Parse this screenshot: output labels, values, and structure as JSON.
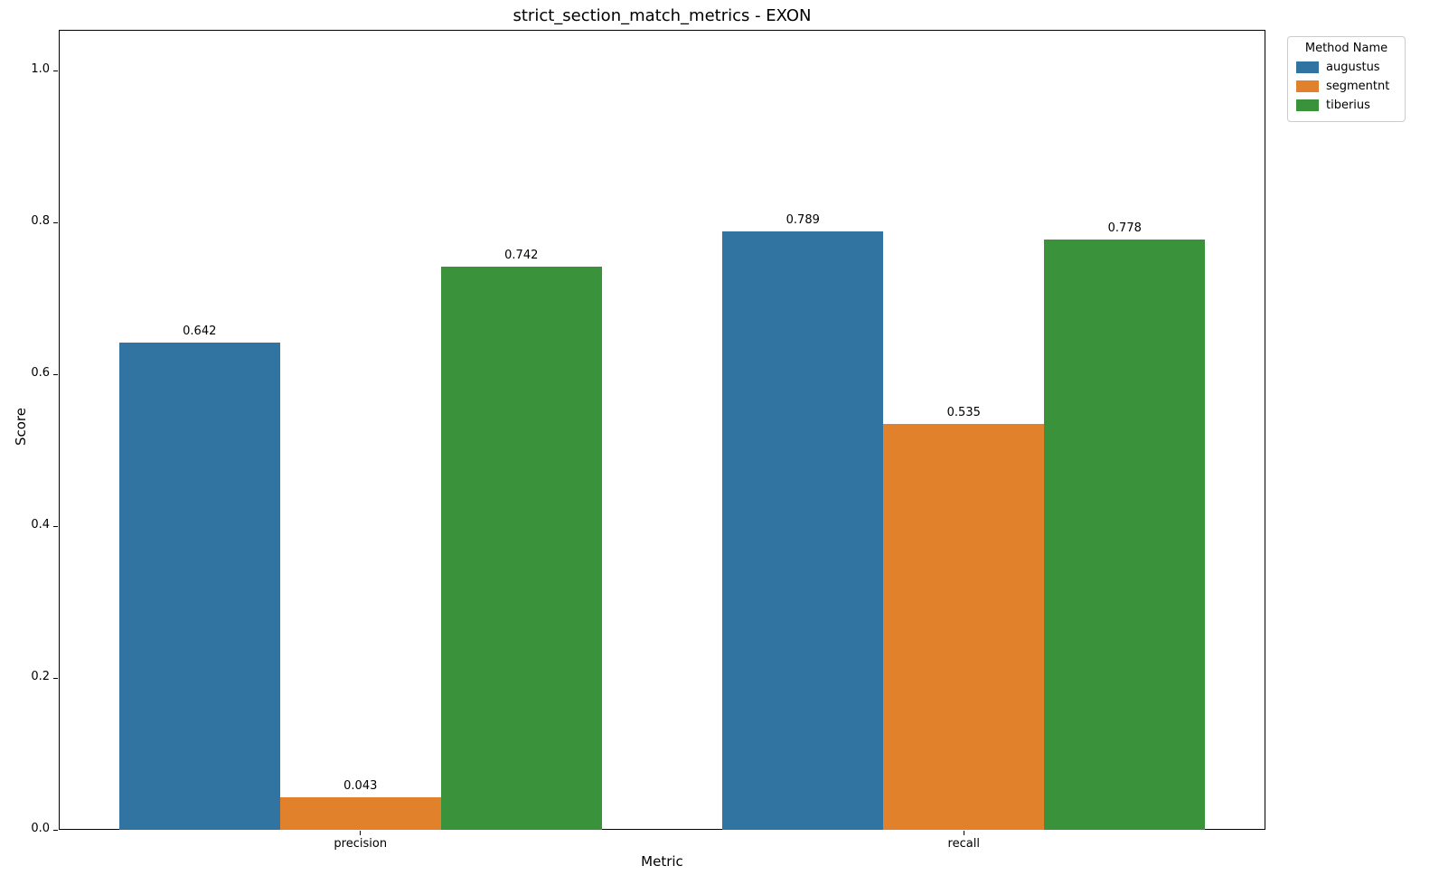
{
  "chart_data": {
    "type": "bar",
    "title": "strict_section_match_metrics - EXON",
    "xlabel": "Metric",
    "ylabel": "Score",
    "categories": [
      "precision",
      "recall"
    ],
    "series": [
      {
        "name": "augustus",
        "color": "#3274a1",
        "values": [
          0.642,
          0.789
        ],
        "labels": [
          "0.642",
          "0.789"
        ]
      },
      {
        "name": "segmentnt",
        "color": "#e1812c",
        "values": [
          0.043,
          0.535
        ],
        "labels": [
          "0.043",
          "0.535"
        ]
      },
      {
        "name": "tiberius",
        "color": "#3a923a",
        "values": [
          0.742,
          0.778
        ],
        "labels": [
          "0.742",
          "0.778"
        ]
      }
    ],
    "ylim": [
      0,
      1.054
    ],
    "yticks": [
      0.0,
      0.2,
      0.4,
      0.6,
      0.8,
      1.0
    ],
    "ytick_labels": [
      "0.0",
      "0.2",
      "0.4",
      "0.6",
      "0.8",
      "1.0"
    ],
    "legend": {
      "title": "Method Name",
      "position": "upper-right-outside"
    },
    "grid": false,
    "group_width_fraction": 0.8
  }
}
